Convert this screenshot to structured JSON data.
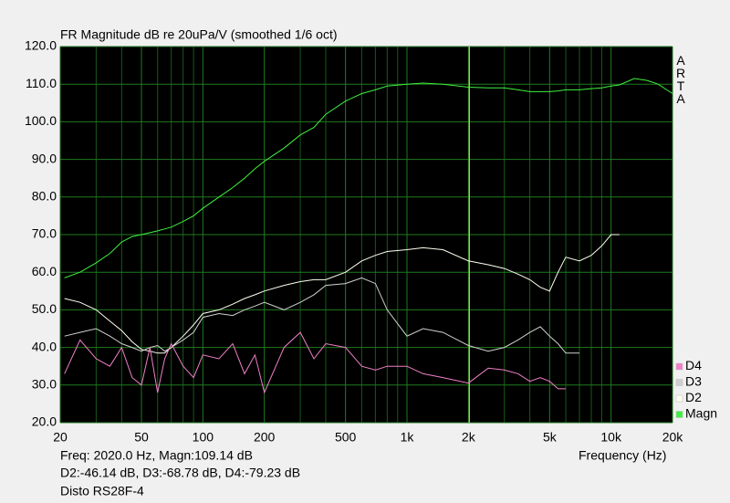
{
  "chart_data": {
    "type": "line",
    "title": "FR Magnitude dB re 20uPa/V (smoothed 1/6 oct)",
    "side_label": "ARTA",
    "x_label": "Frequency (Hz)",
    "readouts": [
      "Freq: 2020.0 Hz, Magn:109.14 dB",
      "D2:-46.14 dB, D3:-68.78 dB, D4:-79.23 dB",
      "Disto RS28F-4"
    ],
    "x_log": true,
    "grid": true,
    "grid_color": "#1f7a1f",
    "legend": "bottom-right",
    "cursor": 2020,
    "cursor_color": "#b8e05a",
    "xlim": [
      20,
      20000
    ],
    "ylim": [
      20,
      120
    ],
    "xticks": [
      20,
      50,
      100,
      200,
      500,
      {
        "value": 1000,
        "label": "1k"
      },
      {
        "value": 2000,
        "label": "2k"
      },
      {
        "value": 5000,
        "label": "5k"
      },
      {
        "value": 10000,
        "label": "10k"
      },
      {
        "value": 20000,
        "label": "20k"
      }
    ],
    "xminor_ticks": [
      30,
      40,
      60,
      70,
      80,
      90,
      300,
      400,
      600,
      700,
      800,
      900,
      3000,
      4000,
      6000,
      7000,
      8000,
      9000
    ],
    "yticks": [
      {
        "value": 20,
        "label": "20.0"
      },
      {
        "value": 30,
        "label": "30.0"
      },
      {
        "value": 40,
        "label": "40.0"
      },
      {
        "value": 50,
        "label": "50.0"
      },
      {
        "value": 60,
        "label": "60.0"
      },
      {
        "value": 70,
        "label": "70.0"
      },
      {
        "value": 80,
        "label": "80.0"
      },
      {
        "value": 90,
        "label": "90.0"
      },
      {
        "value": 100,
        "label": "100.0"
      },
      {
        "value": 110,
        "label": "110.0"
      },
      {
        "value": 120,
        "label": "120.0"
      }
    ],
    "x": [
      21,
      25,
      30,
      35,
      40,
      45,
      50,
      55,
      60,
      65,
      70,
      80,
      90,
      100,
      120,
      140,
      160,
      180,
      200,
      250,
      300,
      350,
      400,
      500,
      600,
      700,
      800,
      1000,
      1200,
      1500,
      2000,
      2500,
      3000,
      3500,
      4000,
      4500,
      5000,
      5500,
      6000,
      7000,
      8000,
      9000,
      10000,
      11000,
      13000,
      15000,
      17000,
      20000
    ],
    "series": [
      {
        "name": "Magn",
        "color": "#40f040",
        "values": [
          58.5,
          60,
          62.5,
          65,
          68,
          69.5,
          70,
          70.5,
          71,
          71.5,
          72,
          73.5,
          75,
          77,
          80,
          82.5,
          85,
          87.5,
          89.5,
          93,
          96.5,
          98.5,
          102,
          105.5,
          107.5,
          108.5,
          109.5,
          110,
          110.3,
          110,
          109.2,
          109,
          109,
          108.5,
          108,
          108,
          108,
          108.2,
          108.5,
          108.5,
          108.8,
          109,
          109.5,
          109.8,
          111.5,
          111,
          110,
          107.5
        ]
      },
      {
        "name": "D2",
        "color": "#fffff0",
        "values": [
          53,
          52,
          50,
          47,
          44.5,
          41.5,
          39.5,
          39,
          38.5,
          38.5,
          40,
          43,
          46,
          49,
          50,
          51.5,
          53,
          54,
          55,
          56.5,
          57.5,
          58,
          58,
          60,
          63,
          64.5,
          65.5,
          66,
          66.5,
          66,
          63,
          62,
          61,
          59.5,
          58,
          56,
          55,
          60,
          64,
          63,
          64.5,
          67,
          70,
          70,
          null,
          null,
          null,
          null
        ]
      },
      {
        "name": "D3",
        "color": "#d0d0d0",
        "values": [
          43,
          44,
          45,
          43,
          41,
          40,
          39,
          40,
          40.5,
          39,
          40,
          42,
          44,
          48,
          49,
          48.5,
          50,
          51,
          52,
          50,
          52,
          54,
          56.5,
          57,
          58.5,
          57,
          50,
          43,
          45,
          44,
          40.5,
          39,
          40,
          42,
          44,
          45.5,
          43,
          41,
          38.5,
          38.5,
          null,
          null,
          null,
          null,
          null,
          null,
          null,
          null
        ]
      },
      {
        "name": "D4",
        "color": "#f080c8",
        "values": [
          33,
          42,
          37,
          35,
          40,
          32,
          30,
          40,
          28,
          37,
          41,
          35,
          32,
          38,
          37,
          41,
          33,
          38,
          28,
          40,
          44,
          37,
          41,
          40,
          35,
          34,
          35,
          35,
          33,
          32,
          30.5,
          34.5,
          34,
          33,
          31,
          32,
          31,
          29,
          29,
          null,
          null,
          null,
          null,
          null,
          null,
          null,
          null,
          null
        ]
      }
    ]
  }
}
